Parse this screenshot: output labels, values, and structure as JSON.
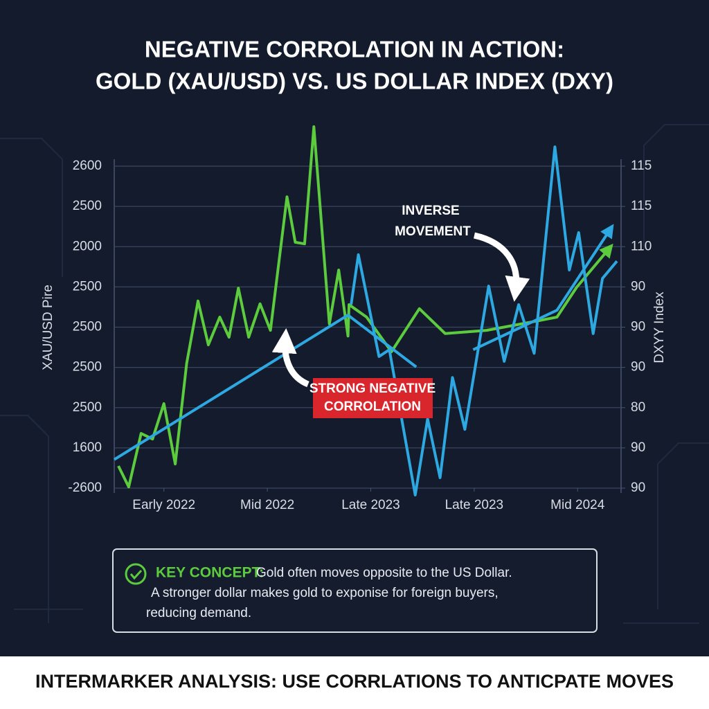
{
  "chart_data": {
    "type": "line",
    "title": [
      "NEGATIVE CORROLATION IN ACTION:",
      "GOLD (XAU/USD) VS. US DOLLAR INDEX (DXY)"
    ],
    "ylabel": "XAU/USD Pire",
    "y2label": "DXYY Index",
    "xlim": [
      -0.48,
      4.42
    ],
    "xticks": [
      {
        "value": 0,
        "label": "Early 2022"
      },
      {
        "value": 1,
        "label": "Mid 2022"
      },
      {
        "value": 2,
        "label": "Late 2023"
      },
      {
        "value": 3,
        "label": "Late 2023"
      },
      {
        "value": 4,
        "label": "Mid 2024"
      }
    ],
    "ylim": [
      0,
      8
    ],
    "yticks": [
      {
        "value": 0,
        "label": "-2600"
      },
      {
        "value": 1,
        "label": "1600"
      },
      {
        "value": 2,
        "label": "2500"
      },
      {
        "value": 3,
        "label": "2500"
      },
      {
        "value": 4,
        "label": "2500"
      },
      {
        "value": 5,
        "label": "2500"
      },
      {
        "value": 6,
        "label": "2000"
      },
      {
        "value": 7,
        "label": "2500"
      },
      {
        "value": 8,
        "label": "2600"
      }
    ],
    "y2lim": [
      0,
      8
    ],
    "y2ticks": [
      {
        "value": 0,
        "label": "90"
      },
      {
        "value": 1,
        "label": "90"
      },
      {
        "value": 2,
        "label": "80"
      },
      {
        "value": 3,
        "label": "90"
      },
      {
        "value": 4,
        "label": "90"
      },
      {
        "value": 5,
        "label": "90"
      },
      {
        "value": 6,
        "label": "110"
      },
      {
        "value": 7,
        "label": "115"
      },
      {
        "value": 8,
        "label": "115"
      }
    ],
    "grid": true,
    "series": [
      {
        "color": "#5ccc3e",
        "arrow": true,
        "x": [
          -0.44,
          -0.34,
          -0.22,
          -0.11,
          0,
          0.11,
          0.22,
          0.33,
          0.43,
          0.54,
          0.63,
          0.72,
          0.82,
          0.93,
          1.03,
          1.19,
          1.27,
          1.36,
          1.45,
          1.6,
          1.69,
          1.78,
          1.79,
          1.96,
          2.2,
          2.47,
          2.72,
          3.12,
          3.6,
          3.8,
          3.99,
          4.31
        ],
        "values": [
          0.55,
          0.03,
          1.36,
          1.22,
          2.1,
          0.6,
          3.1,
          4.65,
          3.56,
          4.25,
          3.75,
          4.97,
          3.75,
          4.58,
          3.92,
          7.24,
          6.11,
          6.07,
          8.98,
          4.08,
          5.42,
          3.78,
          4.56,
          4.25,
          3.39,
          4.46,
          3.84,
          3.92,
          4.15,
          4.25,
          4.99,
          5.97
        ]
      },
      {
        "color": "#2ea8e0",
        "axis": "y2",
        "arrow": false,
        "x": [
          1.81,
          1.88,
          2.08,
          2.18,
          2.43,
          2.55,
          2.67,
          2.79,
          2.91,
          3.14,
          3.29,
          3.43,
          3.58,
          3.78,
          3.92,
          4.01,
          4.15,
          4.24,
          4.38
        ],
        "values": [
          4.56,
          5.8,
          3.27,
          3.44,
          -0.17,
          1.72,
          0.26,
          2.75,
          1.46,
          5.02,
          3.15,
          4.56,
          3.35,
          8.48,
          5.42,
          6.35,
          3.84,
          5.21,
          5.64
        ]
      },
      {
        "color": "#2ea8e0",
        "axis": "y2",
        "arrow": true,
        "x": [
          -0.48,
          1.78,
          2.44,
          null,
          2.99,
          3.8,
          4.32
        ],
        "values": [
          0.71,
          4.3,
          3.01,
          null,
          3.44,
          4.42,
          6.45
        ]
      }
    ],
    "annotations": [
      [
        "INVERSE",
        "MOVEMENT"
      ],
      [
        "STRONG NEGATIVE",
        "CORROLATION"
      ]
    ]
  },
  "key_concept": {
    "label": "KEY CONCEPT:",
    "lines": [
      "Gold often moves opposite to the US Dollar.",
      "A stronger dollar makes gold to exponise for foreign buyers,",
      "reducing demand."
    ]
  },
  "footer": "INTERMARKER ANALYSIS: USE CORRLATIONS TO ANTICPATE MOVES"
}
